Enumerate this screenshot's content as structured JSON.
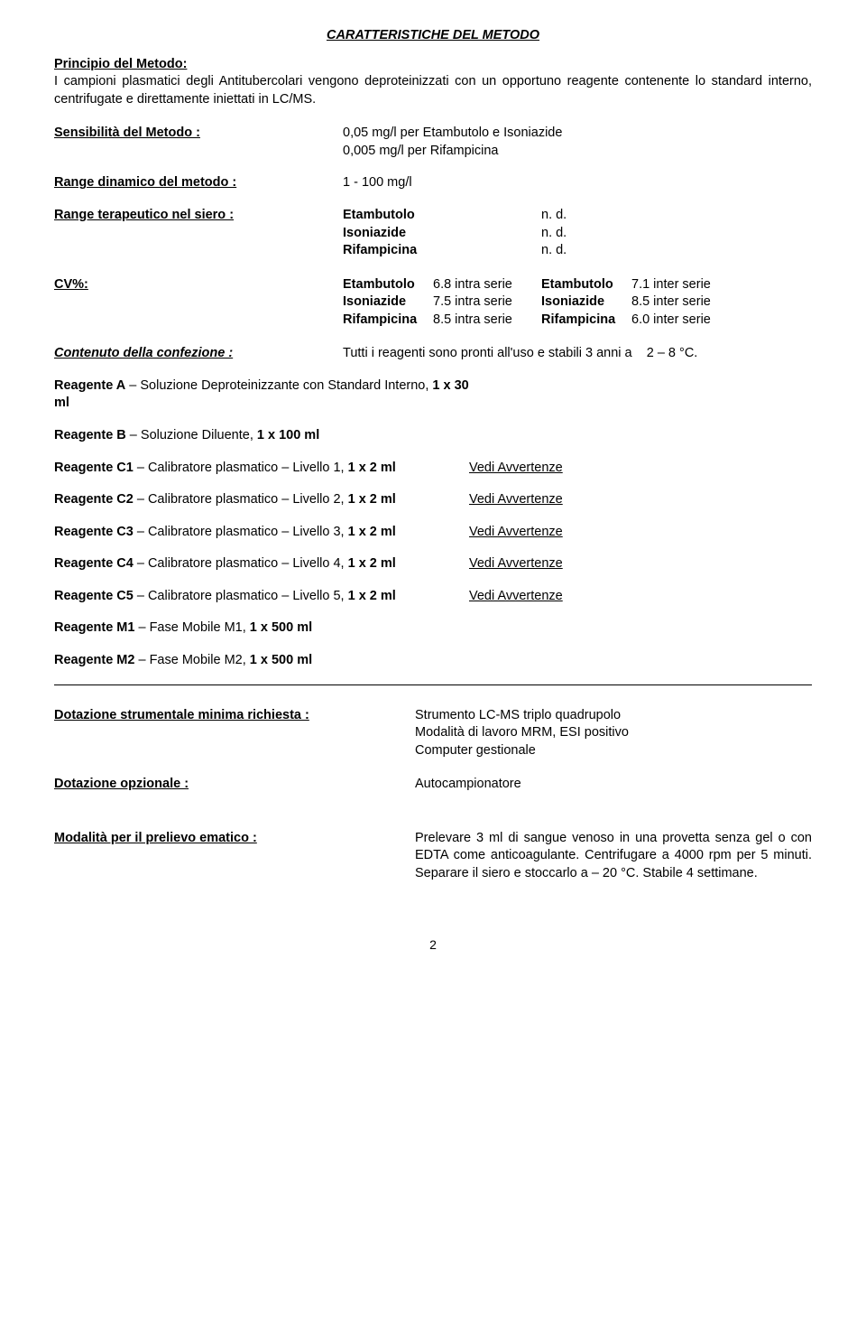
{
  "title": "CARATTERISTICHE DEL METODO",
  "principio": {
    "label": "Principio del Metodo:",
    "text": "I campioni plasmatici degli Antitubercolari vengono deproteinizzati con un opportuno reagente contenente lo standard interno, centrifugate e direttamente iniettati in LC/MS."
  },
  "sensibilita": {
    "label": "Sensibilità del Metodo :",
    "line1": "0,05 mg/l per Etambutolo e Isoniazide",
    "line2": "0,005 mg/l per Rifampicina"
  },
  "range_din": {
    "label": "Range dinamico del metodo :",
    "value": "1 - 100 mg/l"
  },
  "range_ter": {
    "label": "Range terapeutico nel siero :",
    "rows": [
      {
        "name": "Etambutolo",
        "val": "n. d."
      },
      {
        "name": "Isoniazide",
        "val": "n. d."
      },
      {
        "name": "Rifampicina",
        "val": "n. d."
      }
    ]
  },
  "cv": {
    "label": "CV%:",
    "rows": [
      {
        "n1": "Etambutolo",
        "v1": "6.8 intra serie",
        "n2": "Etambutolo",
        "v2": "7.1 inter serie"
      },
      {
        "n1": "Isoniazide",
        "v1": "7.5 intra serie",
        "n2": "Isoniazide",
        "v2": "8.5 inter serie"
      },
      {
        "n1": "Rifampicina",
        "v1": "8.5 intra serie",
        "n2": "Rifampicina",
        "v2": "6.0 inter serie"
      }
    ]
  },
  "contenuto": {
    "label": "Contenuto della confezione :",
    "text_prefix": "Tutti i reagenti sono pronti all'uso e stabili 3 anni a",
    "text_suffix": "2 – 8 °C."
  },
  "reagents_top": [
    {
      "code": "Reagente A",
      "sep": " – ",
      "desc": "Soluzione Deproteinizzante con Standard Interno, ",
      "qty": "1 x 30 ml"
    },
    {
      "code": "Reagente B",
      "sep": " – ",
      "desc": "Soluzione Diluente, ",
      "qty": "1 x 100 ml"
    }
  ],
  "reagents_cal": [
    {
      "code": "Reagente C1",
      "desc": "Calibratore plasmatico – Livello 1, ",
      "qty": "1 x 2 ml",
      "note": "Vedi Avvertenze"
    },
    {
      "code": "Reagente C2",
      "desc": "Calibratore plasmatico – Livello 2, ",
      "qty": "1 x 2 ml",
      "note": "Vedi Avvertenze"
    },
    {
      "code": "Reagente C3",
      "desc": "Calibratore plasmatico – Livello 3, ",
      "qty": "1 x 2 ml",
      "note": "Vedi Avvertenze"
    },
    {
      "code": "Reagente C4",
      "desc": "Calibratore plasmatico – Livello 4, ",
      "qty": "1 x 2 ml",
      "note": "Vedi Avvertenze"
    },
    {
      "code": "Reagente C5",
      "desc": "Calibratore plasmatico – Livello 5, ",
      "qty": "1 x 2 ml",
      "note": "Vedi Avvertenze"
    }
  ],
  "reagents_mobile": [
    {
      "code": "Reagente M1",
      "desc": "Fase Mobile M1, ",
      "qty": "1 x 500 ml"
    },
    {
      "code": "Reagente M2",
      "desc": "Fase Mobile M2, ",
      "qty": "1 x 500 ml"
    }
  ],
  "equip_min": {
    "label": "Dotazione strumentale minima richiesta :",
    "lines": [
      "Strumento LC-MS triplo quadrupolo",
      "Modalità di lavoro MRM, ESI positivo",
      "Computer gestionale"
    ]
  },
  "equip_opt": {
    "label": "Dotazione opzionale :",
    "value": "Autocampionatore"
  },
  "prelievo": {
    "label": "Modalità per il prelievo ematico :",
    "text": "Prelevare 3 ml di sangue venoso in una provetta senza gel o con EDTA come anticoagulante. Centrifugare a 4000 rpm per 5 minuti. Separare il siero e stoccarlo a – 20 °C. Stabile 4 settimane."
  },
  "page": "2"
}
